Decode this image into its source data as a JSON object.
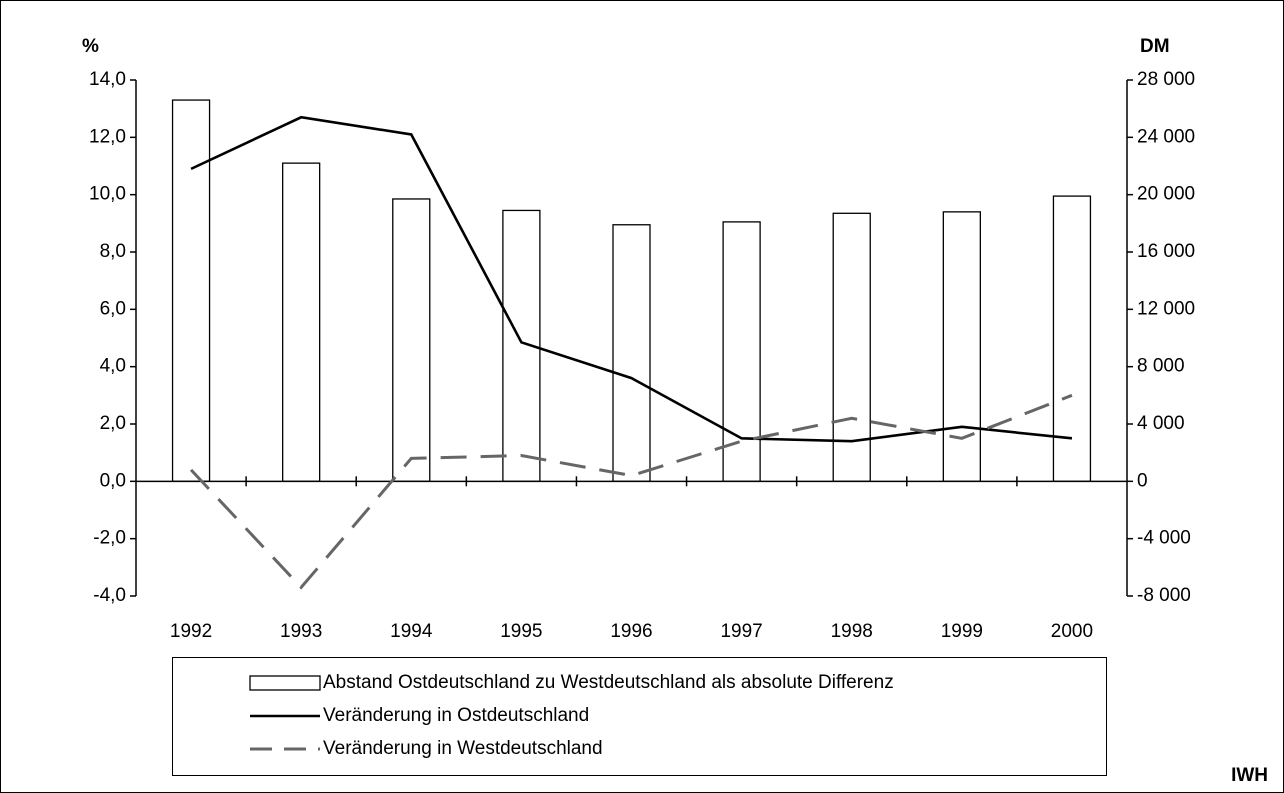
{
  "chart_data": {
    "type": "bar",
    "y_label": "%",
    "y2_label": "DM",
    "source": "IWH",
    "categories": [
      "1992",
      "1993",
      "1994",
      "1995",
      "1996",
      "1997",
      "1998",
      "1999",
      "2000"
    ],
    "series": [
      {
        "name": "Abstand Ostdeutschland zu Westdeutschland als absolute Differenz",
        "type": "bar",
        "axis": "y2",
        "color": "#ffffff",
        "stroke": "#000000",
        "values": [
          26600,
          22200,
          19700,
          18900,
          17900,
          18100,
          18700,
          18800,
          19900
        ]
      },
      {
        "name": "Veränderung in Ostdeutschland",
        "type": "line",
        "color": "#000000",
        "dashed": false,
        "values": [
          10.9,
          12.7,
          12.1,
          4.85,
          3.6,
          1.5,
          1.4,
          1.9,
          1.5
        ]
      },
      {
        "name": "Veränderung in Westdeutschland",
        "type": "line",
        "color": "#666666",
        "dashed": true,
        "values": [
          0.4,
          -3.7,
          0.8,
          0.9,
          0.2,
          1.4,
          2.2,
          1.5,
          3.0
        ]
      }
    ],
    "ylim": [
      -4,
      14
    ],
    "yticks": [
      {
        "value": -4,
        "label": "-4,0"
      },
      {
        "value": -2,
        "label": "-2,0"
      },
      {
        "value": 0,
        "label": "0,0"
      },
      {
        "value": 2,
        "label": "2,0"
      },
      {
        "value": 4,
        "label": "4,0"
      },
      {
        "value": 6,
        "label": "6,0"
      },
      {
        "value": 8,
        "label": "8,0"
      },
      {
        "value": 10,
        "label": "10,0"
      },
      {
        "value": 12,
        "label": "12,0"
      },
      {
        "value": 14,
        "label": "14,0"
      }
    ],
    "y2lim": [
      -8000,
      28000
    ],
    "y2ticks": [
      {
        "value": -8000,
        "label": "-8 000"
      },
      {
        "value": -4000,
        "label": "-4 000"
      },
      0,
      {
        "value": 4000,
        "label": "4 000"
      },
      {
        "value": 8000,
        "label": "8 000"
      },
      {
        "value": 12000,
        "label": "12 000"
      },
      {
        "value": 16000,
        "label": "16 000"
      },
      {
        "value": 20000,
        "label": "20 000"
      },
      {
        "value": 24000,
        "label": "24 000"
      },
      {
        "value": 28000,
        "label": "28 000"
      }
    ],
    "grid": false
  }
}
